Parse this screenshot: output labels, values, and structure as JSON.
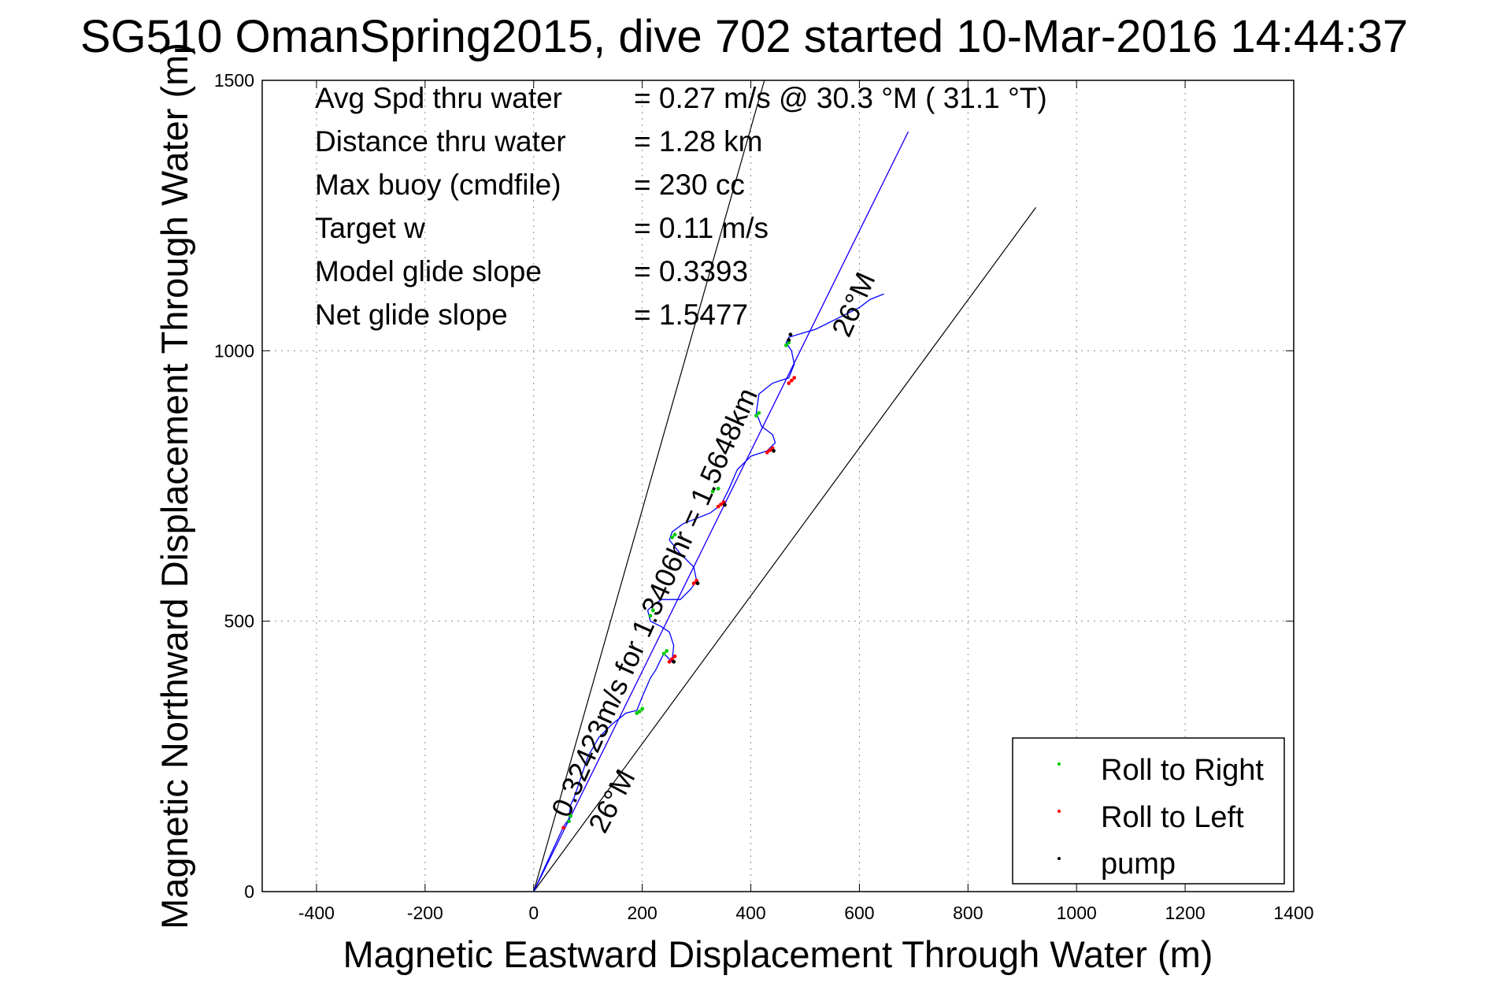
{
  "chart_data": {
    "type": "line",
    "title": "SG510 OmanSpring2015, dive 702 started 10-Mar-2016 14:44:37",
    "xlabel": "Magnetic Eastward Displacement Through Water (m)",
    "ylabel": "Magnetic Northward Displacement Through Water (m)",
    "xlim": [
      -500,
      1400
    ],
    "ylim": [
      0,
      1500
    ],
    "xticks": [
      -400,
      -200,
      0,
      200,
      400,
      600,
      800,
      1000,
      1200,
      1400
    ],
    "yticks": [
      0,
      500,
      1000,
      1500
    ],
    "grid": true,
    "legend_position": "bottom-right",
    "stats": [
      {
        "label": "Avg Spd thru water",
        "value": "=  0.27 m/s @  30.3 °M ( 31.1 °T)"
      },
      {
        "label": "Distance thru water",
        "value": "=  1.28 km"
      },
      {
        "label": "Max buoy (cmdfile)",
        "value": "= 230 cc"
      },
      {
        "label": "Target w",
        "value": "= 0.11 m/s"
      },
      {
        "label": "Model glide slope",
        "value": "= 0.3393"
      },
      {
        "label": "Net glide slope",
        "value": "= 1.5477"
      }
    ],
    "annotations": {
      "course_upper": "26°M",
      "course_lower": "26°M",
      "track_summary": "0.32423m/s for 1.3406hr = 1.5648km"
    },
    "reference_lines": [
      {
        "x": [
          0,
          425
        ],
        "y": [
          0,
          1500
        ],
        "color": "#000000"
      },
      {
        "x": [
          0,
          925
        ],
        "y": [
          0,
          1265
        ],
        "color": "#000000"
      },
      {
        "x": [
          0,
          690
        ],
        "y": [
          0,
          1405
        ],
        "color": "#ff00ff"
      },
      {
        "x": [
          0,
          690
        ],
        "y": [
          0,
          1405
        ],
        "color": "#0000ff"
      }
    ],
    "track": {
      "color": "#0000ff",
      "x": [
        0,
        25,
        55,
        65,
        68,
        75,
        80,
        90,
        100,
        120,
        145,
        170,
        190,
        200,
        215,
        225,
        232,
        240,
        255,
        258,
        250,
        235,
        215,
        210,
        215,
        235,
        270,
        290,
        300,
        295,
        270,
        250,
        255,
        275,
        300,
        325,
        345,
        360,
        375,
        400,
        430,
        445,
        440,
        420,
        410,
        415,
        440,
        470,
        480,
        475,
        465,
        470,
        520,
        570,
        600,
        620,
        645
      ],
      "y": [
        0,
        55,
        120,
        135,
        160,
        175,
        190,
        220,
        250,
        285,
        310,
        330,
        335,
        360,
        395,
        410,
        425,
        440,
        425,
        455,
        480,
        490,
        500,
        520,
        525,
        540,
        540,
        560,
        575,
        600,
        625,
        650,
        665,
        680,
        690,
        700,
        715,
        745,
        780,
        805,
        815,
        830,
        845,
        860,
        885,
        920,
        940,
        950,
        975,
        1000,
        1015,
        1025,
        1040,
        1065,
        1080,
        1095,
        1105
      ]
    },
    "series": [
      {
        "name": "Roll to Right",
        "color": "#00cc00",
        "x": [
          65,
          68,
          190,
          195,
          200,
          215,
          220,
          240,
          245,
          255,
          260,
          330,
          340,
          410,
          415,
          465,
          470
        ],
        "y": [
          130,
          140,
          330,
          333,
          338,
          510,
          520,
          440,
          445,
          655,
          660,
          740,
          745,
          880,
          885,
          1010,
          1015
        ]
      },
      {
        "name": "Roll to Left",
        "color": "#ff0000",
        "x": [
          55,
          250,
          255,
          260,
          295,
          300,
          340,
          345,
          350,
          430,
          435,
          440,
          470,
          475,
          480
        ],
        "y": [
          118,
          425,
          430,
          435,
          570,
          575,
          712,
          716,
          720,
          812,
          816,
          820,
          940,
          945,
          950
        ]
      },
      {
        "name": "pump",
        "color": "#000000",
        "x": [
          258,
          302,
          352,
          442,
          470,
          473
        ],
        "y": [
          425,
          570,
          715,
          815,
          1020,
          1030
        ]
      }
    ]
  }
}
